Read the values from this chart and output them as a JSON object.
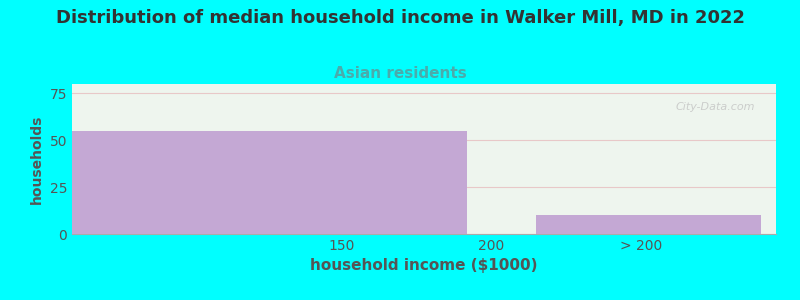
{
  "title": "Distribution of median household income in Walker Mill, MD in 2022",
  "subtitle": "Asian residents",
  "xlabel": "household income ($1000)",
  "ylabel": "households",
  "background_color": "#00ffff",
  "plot_bg_color": "#eef5ee",
  "bar_color": "#c4a8d4",
  "bar_edge_color": "#c4a8d4",
  "title_fontsize": 13,
  "subtitle_fontsize": 11,
  "subtitle_color": "#4aacac",
  "axis_label_color": "#555555",
  "tick_label_color": "#555555",
  "bars": [
    {
      "x_left": 60,
      "x_right": 192,
      "height": 55
    },
    {
      "x_left": 215,
      "x_right": 290,
      "height": 10
    }
  ],
  "xticks": [
    150,
    200,
    250
  ],
  "xticklabels": [
    "150",
    "200",
    "> 200"
  ],
  "ylim": [
    0,
    80
  ],
  "yticks": [
    0,
    25,
    50,
    75
  ],
  "xlim": [
    60,
    295
  ],
  "grid_color": "#e8c8c8",
  "watermark": "City-Data.com"
}
